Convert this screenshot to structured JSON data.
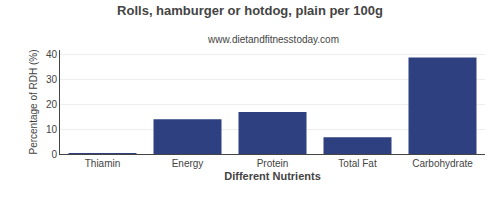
{
  "chart_data": {
    "type": "bar",
    "title": "Rolls, hamburger or hotdog, plain per 100g",
    "subtitle": "www.dietandfitnesstoday.com",
    "xlabel": "Different Nutrients",
    "ylabel": "Percentage of RDH (%)",
    "categories": [
      "Thiamin",
      "Energy",
      "Protein",
      "Total Fat",
      "Carbohydrate"
    ],
    "values": [
      0.2,
      14.0,
      17.0,
      6.8,
      39.0
    ],
    "color": "#2e4080",
    "ylim": [
      0,
      42
    ],
    "yticks": [
      0,
      10,
      20,
      30,
      40
    ],
    "grid": true
  }
}
